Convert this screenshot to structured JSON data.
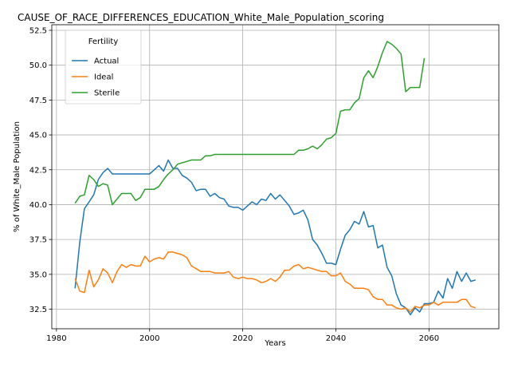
{
  "chart_data": {
    "type": "line",
    "title": "CAUSE_OF_RACE_DIFFERENCES_EDUCATION_White_Male_Population_scoring",
    "xlabel": "Years",
    "ylabel": "% of White_Male Population",
    "xlim": [
      1979,
      2075
    ],
    "ylim": [
      31.1,
      52.9
    ],
    "xticks": [
      1980,
      2000,
      2020,
      2040,
      2060
    ],
    "yticks": [
      32.5,
      35.0,
      37.5,
      40.0,
      42.5,
      45.0,
      47.5,
      50.0,
      52.5
    ],
    "ytick_labels": [
      "32.5",
      "35.0",
      "37.5",
      "40.0",
      "42.5",
      "45.0",
      "47.5",
      "50.0",
      "52.5"
    ],
    "grid": true,
    "legend": {
      "title": "Fertility",
      "position": "top-left"
    },
    "series": [
      {
        "name": "Actual",
        "color": "#1f77b4",
        "x": [
          1984,
          1985,
          1986,
          1987,
          1988,
          1989,
          1990,
          1991,
          1992,
          1993,
          1994,
          1995,
          1996,
          1997,
          1998,
          1999,
          2000,
          2001,
          2002,
          2003,
          2004,
          2005,
          2006,
          2007,
          2008,
          2009,
          2010,
          2011,
          2012,
          2013,
          2014,
          2015,
          2016,
          2017,
          2018,
          2019,
          2020,
          2021,
          2022,
          2023,
          2024,
          2025,
          2026,
          2027,
          2028,
          2029,
          2030,
          2031,
          2032,
          2033,
          2034,
          2035,
          2036,
          2037,
          2038,
          2039,
          2040,
          2041,
          2042,
          2043,
          2044,
          2045,
          2046,
          2047,
          2048,
          2049,
          2050,
          2051,
          2052,
          2053,
          2054,
          2055,
          2056,
          2057,
          2058,
          2059,
          2060,
          2061,
          2062,
          2063,
          2064,
          2065,
          2066,
          2067,
          2068,
          2069,
          2070
        ],
        "values": [
          34.0,
          37.3,
          39.7,
          40.2,
          40.7,
          41.8,
          42.3,
          42.6,
          42.2,
          42.2,
          42.2,
          42.2,
          42.2,
          42.2,
          42.2,
          42.2,
          42.2,
          42.5,
          42.8,
          42.4,
          43.2,
          42.6,
          42.6,
          42.1,
          41.9,
          41.6,
          41.0,
          41.1,
          41.1,
          40.6,
          40.8,
          40.5,
          40.4,
          39.9,
          39.8,
          39.8,
          39.6,
          39.9,
          40.2,
          40.0,
          40.4,
          40.3,
          40.8,
          40.4,
          40.7,
          40.3,
          39.9,
          39.3,
          39.4,
          39.6,
          38.9,
          37.5,
          37.1,
          36.5,
          35.8,
          35.8,
          35.7,
          36.8,
          37.8,
          38.2,
          38.8,
          38.6,
          39.5,
          38.4,
          38.5,
          36.9,
          37.1,
          35.5,
          34.9,
          33.6,
          32.8,
          32.6,
          32.1,
          32.6,
          32.3,
          32.9,
          32.9,
          33.0,
          33.8,
          33.3,
          34.7,
          34.0,
          35.2,
          34.5,
          35.1,
          34.5,
          34.6
        ]
      },
      {
        "name": "Ideal",
        "color": "#ff7f0e",
        "x": [
          1984,
          1985,
          1986,
          1987,
          1988,
          1989,
          1990,
          1991,
          1992,
          1993,
          1994,
          1995,
          1996,
          1997,
          1998,
          1999,
          2000,
          2001,
          2002,
          2003,
          2004,
          2005,
          2006,
          2007,
          2008,
          2009,
          2010,
          2011,
          2012,
          2013,
          2014,
          2015,
          2016,
          2017,
          2018,
          2019,
          2020,
          2021,
          2022,
          2023,
          2024,
          2025,
          2026,
          2027,
          2028,
          2029,
          2030,
          2031,
          2032,
          2033,
          2034,
          2035,
          2036,
          2037,
          2038,
          2039,
          2040,
          2041,
          2042,
          2043,
          2044,
          2045,
          2046,
          2047,
          2048,
          2049,
          2050,
          2051,
          2052,
          2053,
          2054,
          2055,
          2056,
          2057,
          2058,
          2059,
          2060,
          2061,
          2062,
          2063,
          2064,
          2065,
          2066,
          2067,
          2068,
          2069,
          2070
        ],
        "values": [
          34.7,
          33.8,
          33.7,
          35.3,
          34.1,
          34.6,
          35.4,
          35.1,
          34.4,
          35.2,
          35.7,
          35.5,
          35.7,
          35.6,
          35.6,
          36.3,
          35.9,
          36.1,
          36.2,
          36.1,
          36.6,
          36.6,
          36.5,
          36.4,
          36.2,
          35.6,
          35.4,
          35.2,
          35.2,
          35.2,
          35.1,
          35.1,
          35.1,
          35.2,
          34.8,
          34.7,
          34.8,
          34.7,
          34.7,
          34.6,
          34.4,
          34.5,
          34.7,
          34.5,
          34.8,
          35.3,
          35.3,
          35.6,
          35.7,
          35.4,
          35.5,
          35.4,
          35.3,
          35.2,
          35.2,
          34.9,
          34.9,
          35.1,
          34.5,
          34.3,
          34.0,
          34.0,
          34.0,
          33.9,
          33.4,
          33.2,
          33.2,
          32.8,
          32.8,
          32.6,
          32.5,
          32.6,
          32.3,
          32.7,
          32.6,
          32.8,
          32.8,
          33.0,
          32.8,
          33.0,
          33.0,
          33.0,
          33.0,
          33.2,
          33.2,
          32.7,
          32.6
        ]
      },
      {
        "name": "Sterile",
        "color": "#2ca02c",
        "x": [
          1984,
          1985,
          1986,
          1987,
          1988,
          1989,
          1990,
          1991,
          1992,
          1993,
          1994,
          1995,
          1996,
          1997,
          1998,
          1999,
          2000,
          2001,
          2002,
          2003,
          2004,
          2005,
          2006,
          2007,
          2008,
          2009,
          2010,
          2011,
          2012,
          2013,
          2014,
          2015,
          2016,
          2017,
          2018,
          2019,
          2020,
          2021,
          2022,
          2023,
          2024,
          2025,
          2026,
          2027,
          2028,
          2029,
          2030,
          2031,
          2032,
          2033,
          2034,
          2035,
          2036,
          2037,
          2038,
          2039,
          2040,
          2041,
          2042,
          2043,
          2044,
          2045,
          2046,
          2047,
          2048,
          2049,
          2050,
          2051,
          2052,
          2053,
          2054,
          2055,
          2056,
          2057,
          2058,
          2059
        ],
        "values": [
          40.1,
          40.6,
          40.7,
          42.1,
          41.8,
          41.3,
          41.5,
          41.4,
          40.0,
          40.4,
          40.8,
          40.8,
          40.8,
          40.3,
          40.5,
          41.1,
          41.1,
          41.1,
          41.3,
          41.8,
          42.2,
          42.5,
          42.9,
          43.0,
          43.1,
          43.2,
          43.2,
          43.2,
          43.5,
          43.5,
          43.6,
          43.6,
          43.6,
          43.6,
          43.6,
          43.6,
          43.6,
          43.6,
          43.6,
          43.6,
          43.6,
          43.6,
          43.6,
          43.6,
          43.6,
          43.6,
          43.6,
          43.6,
          43.9,
          43.9,
          44.0,
          44.2,
          44.0,
          44.3,
          44.7,
          44.8,
          45.1,
          46.7,
          46.8,
          46.8,
          47.3,
          47.6,
          49.1,
          49.6,
          49.1,
          49.9,
          50.9,
          51.7,
          51.5,
          51.2,
          50.8,
          48.1,
          48.4,
          48.4,
          48.4,
          50.5
        ]
      }
    ]
  }
}
